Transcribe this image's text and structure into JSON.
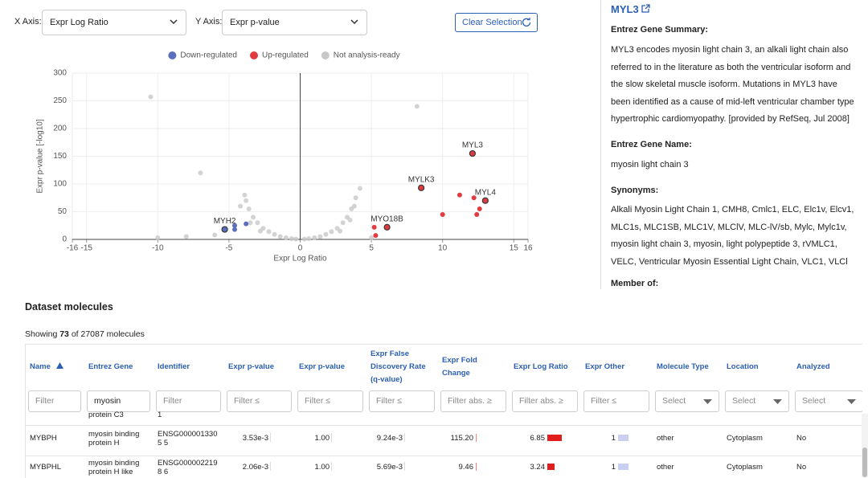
{
  "controls": {
    "x_axis_label": "X Axis:",
    "x_axis_value": "Expr Log Ratio",
    "y_axis_label": "Y Axis:",
    "y_axis_value": "Expr p-value",
    "clear_button": "Clear Selection"
  },
  "chart_data": {
    "type": "scatter",
    "xlabel": "Expr Log Ratio",
    "ylabel": "Expr p-value [-log10]",
    "xlim": [
      -16,
      16
    ],
    "xticks": [
      -16,
      -15,
      -10,
      -5,
      0,
      5,
      10,
      15,
      16
    ],
    "ylim": [
      0,
      300
    ],
    "yticks": [
      0,
      50,
      100,
      150,
      200,
      250,
      300
    ],
    "grid": true,
    "series": [
      {
        "name": "Down-regulated",
        "color": "#5b6fbf",
        "x": [
          -5.3,
          -4.6,
          -4.6,
          -3.8
        ],
        "y": [
          18,
          25,
          18,
          28
        ],
        "labels": [
          "MYH2",
          null,
          null,
          null
        ]
      },
      {
        "name": "Up-regulated",
        "color": "#e23b3f",
        "x": [
          12.1,
          8.5,
          13,
          6.1,
          11.2,
          10,
          12.6,
          12.4,
          5.2,
          5.3,
          12.2
        ],
        "y": [
          155,
          93,
          70,
          22,
          80,
          45,
          55,
          45,
          22,
          7,
          75
        ],
        "labels": [
          "MYL3",
          "MYLK3",
          "MYL4",
          "MYO18B",
          null,
          null,
          null,
          null,
          null,
          null,
          null
        ]
      },
      {
        "name": "Not analysis-ready",
        "color": "#c8c8c8",
        "x": [
          -10.5,
          -10,
          -8,
          -6,
          -4.2,
          -3.9,
          -3.6,
          -3.3,
          -3,
          -2.6,
          -2.2,
          -1.8,
          -1.4,
          -1,
          -0.6,
          -0.3,
          0.3,
          0.6,
          1,
          1.4,
          1.8,
          2.2,
          2.6,
          3,
          3.3,
          3.6,
          3.9,
          4.2,
          8.2,
          3.8,
          -3.8,
          -3.5,
          -2.8,
          2.8,
          3.5,
          5,
          -7
        ],
        "y": [
          257,
          3,
          5,
          8,
          60,
          80,
          55,
          40,
          30,
          20,
          14,
          9,
          5,
          3,
          1.5,
          0.5,
          0.5,
          1.5,
          3,
          5,
          9,
          14,
          20,
          30,
          40,
          55,
          75,
          92,
          240,
          60,
          70,
          30,
          15,
          15,
          35,
          3,
          120
        ]
      }
    ]
  },
  "detail": {
    "title": "MYL3",
    "summary_heading": "Entrez Gene Summary:",
    "summary": "MYL3 encodes myosin light chain 3, an alkali light chain also referred to in the literature as both the ventricular isoform and the slow skeletal muscle isoform. Mutations in MYL3 have been identified as a cause of mid-left ventricular chamber type hypertrophic cardiomyopathy. [provided by RefSeq, Jul 2008]",
    "name_heading": "Entrez Gene Name:",
    "name": "myosin light chain 3",
    "synonyms_heading": "Synonyms:",
    "synonyms": "Alkali Myosin Light Chain 1, CMH8, Cmlc1, ELC, Elc1v, Elcv1, MLC1s, MLC1SB, MLC1V, MLClV, MLC-lV/sb, Mylc, Mylc1v, myosin light chain 3, myosin, light polypeptide 3, rVMLC1, VELC, Ventricular Myosin Essential Light Chain, VLC1, VLCl",
    "member_heading": "Member of:"
  },
  "table": {
    "title": "Dataset molecules",
    "showing_prefix": "Showing",
    "showing_count": "73",
    "showing_suffix": "of 27087 molecules",
    "headers": [
      "Name",
      "Entrez Gene",
      "Identifier",
      "Expr p-value",
      "Expr p-value",
      "Expr False Discovery Rate (q-value)",
      "Expr Fold Change",
      "Expr Log Ratio",
      "Expr Other",
      "Molecule Type",
      "Location",
      "Analyzed"
    ],
    "filters": [
      "Filter",
      "myosin",
      "Filter",
      "Filter ≤",
      "Filter ≤",
      "Filter ≤",
      "Filter abs. ≥",
      "Filter abs. ≥",
      "Filter ≤",
      "Select",
      "Select",
      "Select"
    ],
    "rows": [
      [
        null,
        "protein C3",
        "1",
        null,
        null,
        null,
        null,
        null,
        null,
        null,
        null,
        null
      ],
      [
        "MYBPH",
        "myosin binding protein H",
        "ENSG0000013305 5",
        "3.53e-3",
        "1.00",
        "9.24e-3",
        "115.20",
        "6.85",
        "1",
        "other",
        "Cytoplasm",
        "No"
      ],
      [
        "MYBPHL",
        "myosin binding protein H like",
        "ENSG0000022198 6",
        "2.06e-3",
        "1.00",
        "5.69e-3",
        "9.46",
        "3.24",
        "1",
        "other",
        "Cytoplasm",
        "No"
      ]
    ]
  }
}
